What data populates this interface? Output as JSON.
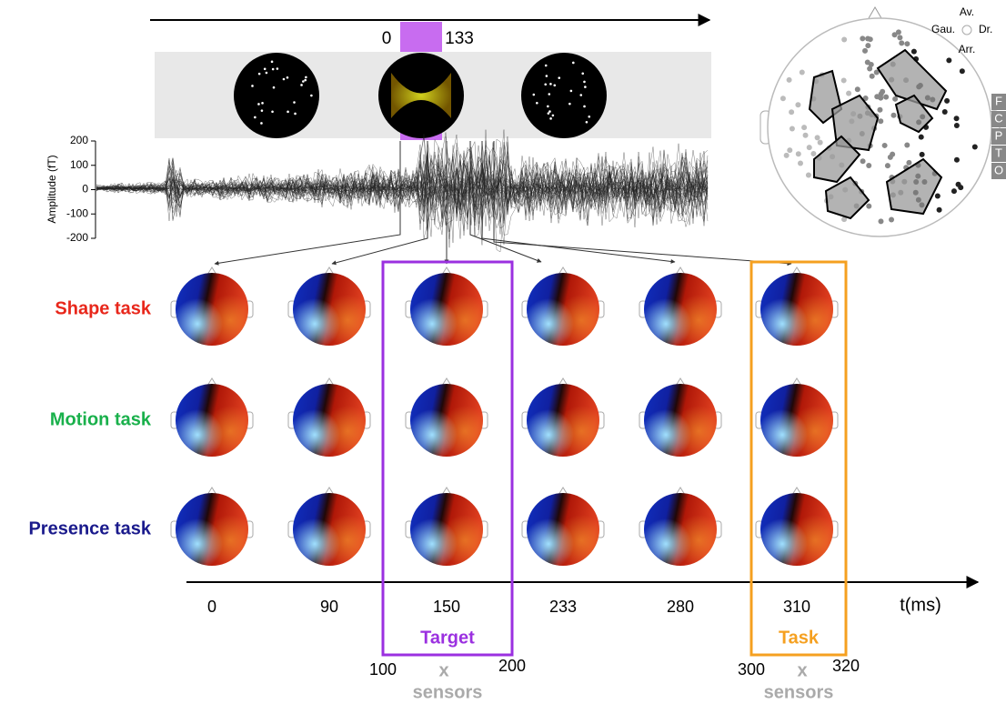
{
  "timeline_top": {
    "start": 0,
    "end": 133
  },
  "amplitude_plot": {
    "y_label": "Amplitude (fT)",
    "yticks": [
      200,
      100,
      0,
      -100,
      -200
    ]
  },
  "sensor_map": {
    "directions": {
      "front": "Av.",
      "left": "Gau.",
      "right": "Dr.",
      "back": "Arr."
    },
    "regions": [
      "F",
      "C",
      "P",
      "T",
      "O"
    ]
  },
  "rows": [
    {
      "label": "Shape task",
      "color": "#e8271b"
    },
    {
      "label": "Motion task",
      "color": "#19b04b"
    },
    {
      "label": "Presence task",
      "color": "#1a1a8c"
    }
  ],
  "time_labels": [
    0,
    90,
    150,
    233,
    280,
    310
  ],
  "time_axis_label": "t(ms)",
  "windows": [
    {
      "label": "Target",
      "color": "#9b30e0",
      "start": 100,
      "times": "x",
      "end": 200,
      "unit": "sensors"
    },
    {
      "label": "Task",
      "color": "#f5a020",
      "start": 300,
      "times": "x",
      "end": 320,
      "unit": "sensors"
    }
  ]
}
